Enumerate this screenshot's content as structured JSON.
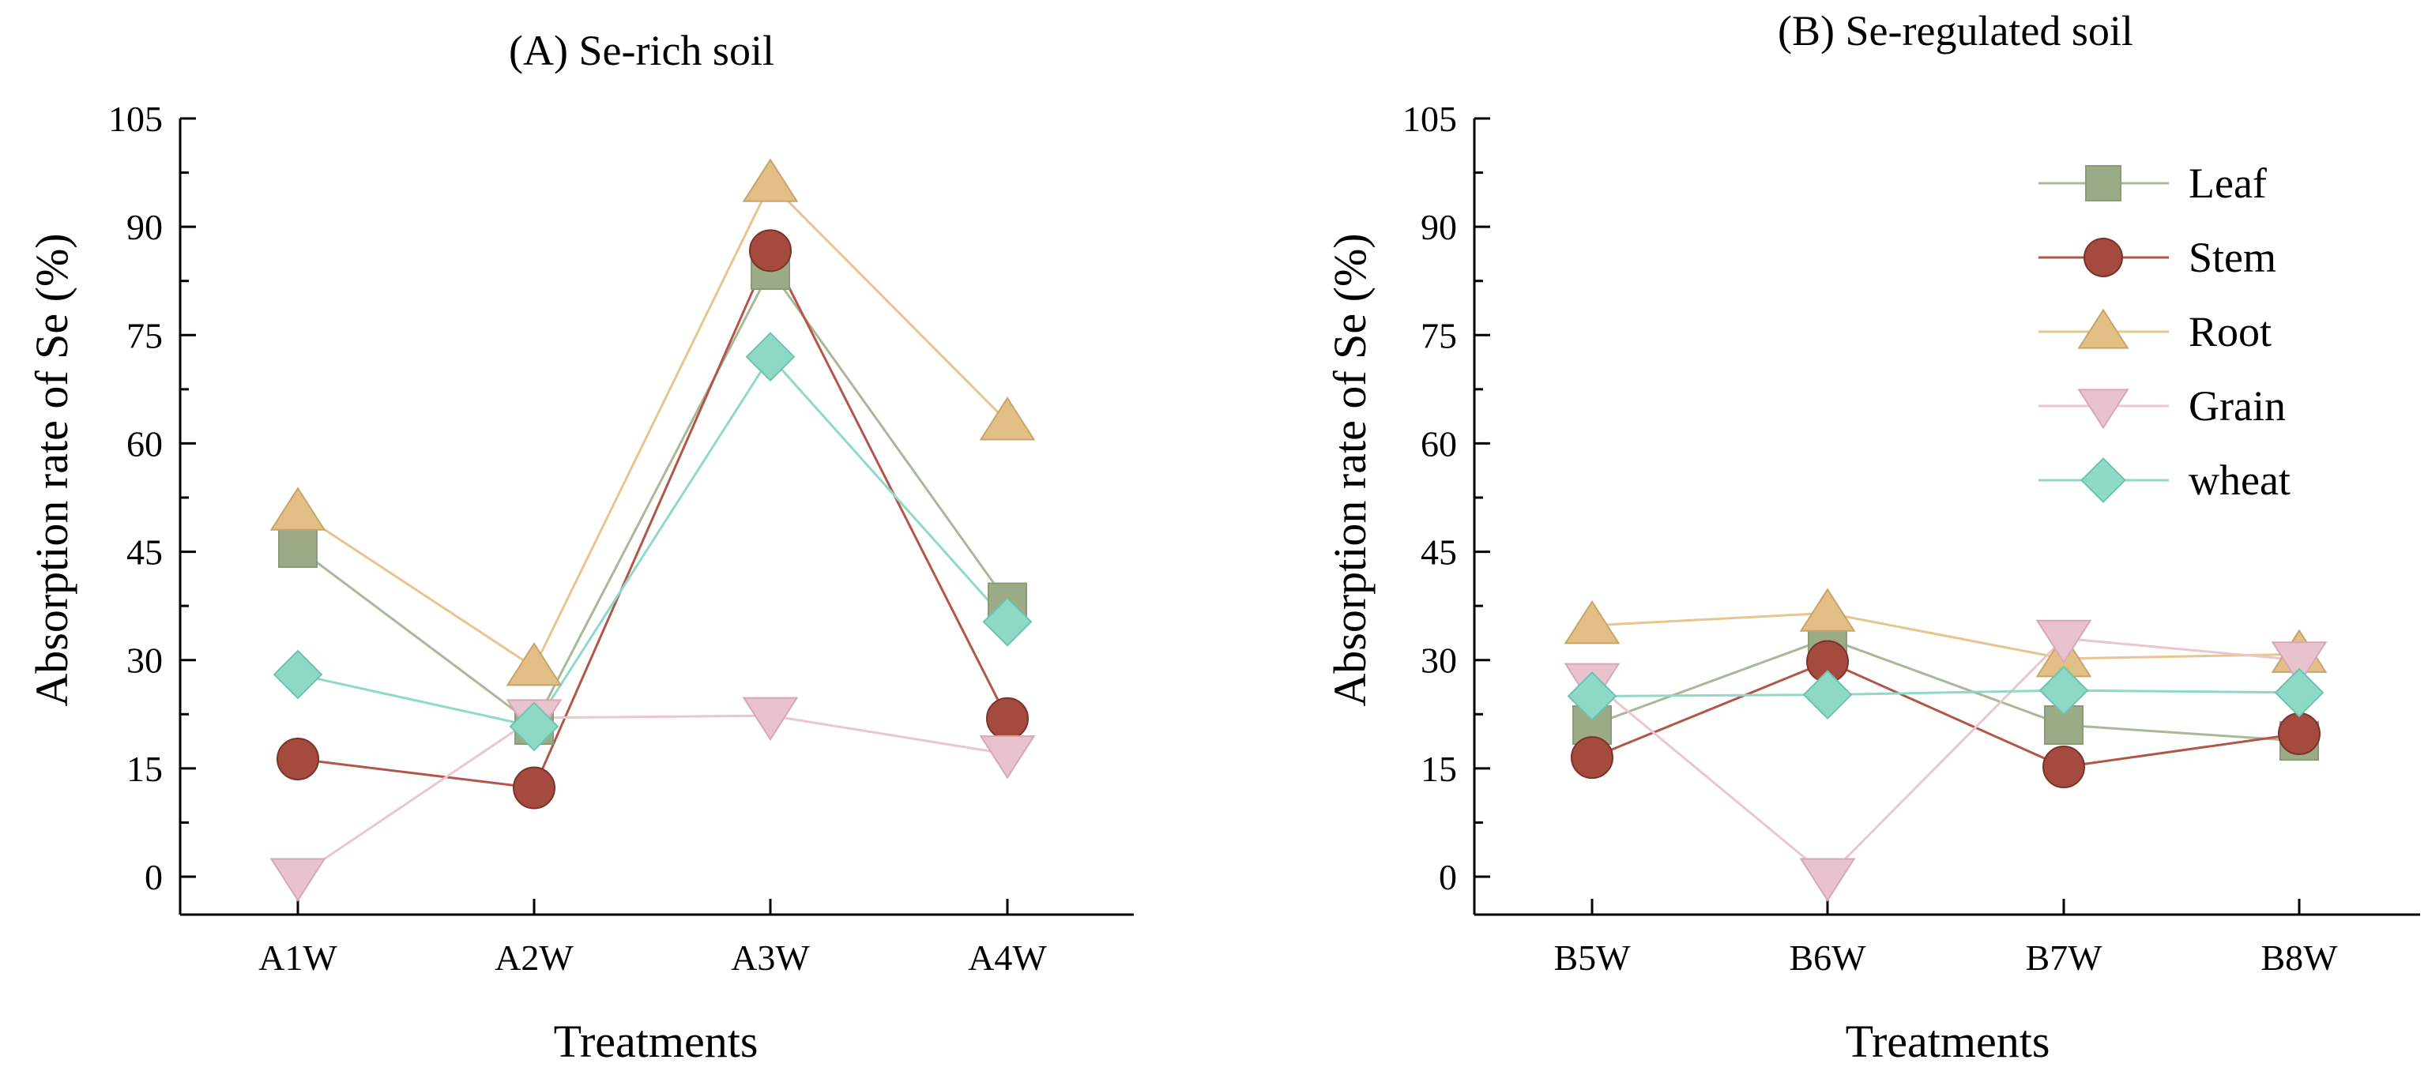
{
  "chart_data": [
    {
      "type": "line",
      "title": "(A) Se-rich soil",
      "xlabel": "Treatments",
      "ylabel": "Absorption rate of Se (%)",
      "ylim": [
        0,
        105
      ],
      "yticks": [
        0,
        15,
        30,
        45,
        60,
        75,
        90,
        105
      ],
      "categories": [
        "A1W",
        "A2W",
        "A3W",
        "A4W"
      ],
      "legend": false,
      "series": [
        {
          "name": "Leaf",
          "values": [
            45.5,
            21.0,
            84.0,
            38.0
          ]
        },
        {
          "name": "Stem",
          "values": [
            16.3,
            12.3,
            86.7,
            21.9
          ]
        },
        {
          "name": "Root",
          "values": [
            50.5,
            29.0,
            96.0,
            63.0
          ]
        },
        {
          "name": "Grain",
          "values": [
            0.0,
            22.0,
            22.3,
            17.0
          ]
        },
        {
          "name": "wheat",
          "values": [
            28.0,
            20.8,
            72.0,
            35.3
          ]
        }
      ]
    },
    {
      "type": "line",
      "title": "(B) Se-regulated soil",
      "xlabel": "Treatments",
      "ylabel": "Absorption rate of Se (%)",
      "ylim": [
        0,
        105
      ],
      "yticks": [
        0,
        15,
        30,
        45,
        60,
        75,
        90,
        105
      ],
      "categories": [
        "B5W",
        "B6W",
        "B7W",
        "B8W"
      ],
      "legend": true,
      "legend_position": "top-right",
      "series": [
        {
          "name": "Leaf",
          "values": [
            21.0,
            33.0,
            21.0,
            18.8
          ]
        },
        {
          "name": "Stem",
          "values": [
            16.5,
            29.8,
            15.2,
            19.8
          ]
        },
        {
          "name": "Root",
          "values": [
            34.8,
            36.5,
            30.2,
            30.8
          ]
        },
        {
          "name": "Grain",
          "values": [
            27.0,
            0.0,
            33.0,
            30.0
          ]
        },
        {
          "name": "wheat",
          "values": [
            25.0,
            25.2,
            25.8,
            25.5
          ]
        }
      ]
    }
  ],
  "series_styles": [
    {
      "name": "Leaf",
      "marker": "square",
      "line_color": "#a9b896",
      "fill": "#9aab86",
      "stroke": "#8a9a78"
    },
    {
      "name": "Stem",
      "marker": "circle",
      "line_color": "#b2564a",
      "fill": "#a44a3e",
      "stroke": "#7c3328"
    },
    {
      "name": "Root",
      "marker": "triangle-up",
      "line_color": "#e8c48e",
      "fill": "#e2bf85",
      "stroke": "#c9a46a"
    },
    {
      "name": "Grain",
      "marker": "triangle-down",
      "line_color": "#ecc6cf",
      "fill": "#e8c2cc",
      "stroke": "#d6a8b4"
    },
    {
      "name": "wheat",
      "marker": "diamond",
      "line_color": "#8fd9c8",
      "fill": "#8ed8c6",
      "stroke": "#6cc4b0"
    }
  ]
}
